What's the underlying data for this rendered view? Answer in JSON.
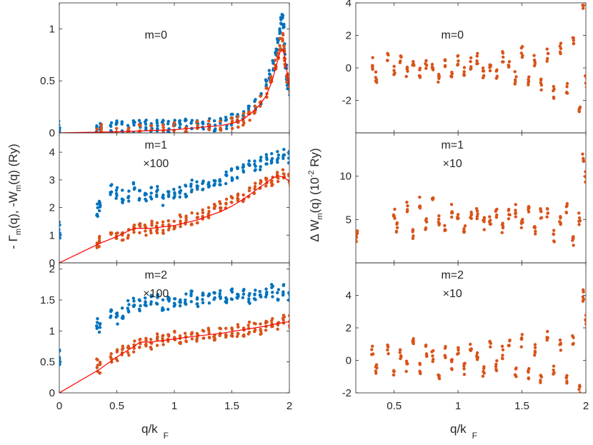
{
  "colors": {
    "blue": "#0072bd",
    "orange": "#d95319",
    "red": "#ff0000",
    "axis": "#262626"
  },
  "left_ylabel": {
    "parts": [
      "- Γ",
      "m",
      "(q), -W",
      "m",
      "(q) (Ry)"
    ]
  },
  "right_ylabel": {
    "parts": [
      "Δ W",
      "m",
      "(q) (10",
      "-2",
      " Ry)"
    ]
  },
  "xlabel": {
    "main": "q/k",
    "sub": "F"
  },
  "chart_data": [
    {
      "id": "left-m0",
      "type": "scatter",
      "annotation": [
        "m=0"
      ],
      "xlim": [
        0,
        2
      ],
      "ylim": [
        0,
        1.25
      ],
      "yticks": [
        0,
        0.5,
        1
      ],
      "ytick_labels": [
        "0",
        "0.5",
        "1"
      ],
      "xticks": [
        0,
        0.5,
        1,
        1.5,
        2
      ],
      "xtick_labels": [],
      "series": [
        {
          "color": "blue",
          "x": [
            0,
            0,
            0.33,
            0.36,
            0.45,
            0.5,
            0.55,
            0.6,
            0.65,
            0.7,
            0.75,
            0.8,
            0.85,
            0.9,
            0.95,
            1.0,
            1.05,
            1.1,
            1.15,
            1.2,
            1.25,
            1.3,
            1.35,
            1.4,
            1.45,
            1.5,
            1.55,
            1.6,
            1.65,
            1.7,
            1.75,
            1.8,
            1.83,
            1.86,
            1.88,
            1.9,
            1.92,
            1.93,
            1.94,
            1.95,
            1.96,
            1.97,
            1.98,
            1.99,
            2.0
          ],
          "y": [
            0.07,
            0.04,
            0.06,
            0.05,
            0.05,
            0.06,
            0.05,
            0.05,
            0.06,
            0.06,
            0.06,
            0.06,
            0.07,
            0.06,
            0.06,
            0.06,
            0.06,
            0.07,
            0.07,
            0.07,
            0.07,
            0.08,
            0.08,
            0.09,
            0.1,
            0.12,
            0.14,
            0.17,
            0.2,
            0.26,
            0.34,
            0.45,
            0.55,
            0.65,
            0.75,
            0.85,
            0.95,
            1.05,
            1.08,
            1.0,
            0.8,
            0.6,
            0.5,
            0.45,
            0.42
          ]
        },
        {
          "color": "orange",
          "x": [
            0.33,
            0.36,
            0.5,
            0.6,
            0.7,
            0.8,
            0.9,
            1.0,
            1.1,
            1.2,
            1.3,
            1.4,
            1.5,
            1.55,
            1.6,
            1.65,
            1.7,
            1.75,
            1.8,
            1.84,
            1.88,
            1.9,
            1.92,
            1.94,
            1.95,
            1.96,
            1.98,
            2.0
          ],
          "y": [
            0.01,
            0.02,
            0.02,
            0.02,
            0.03,
            0.03,
            0.03,
            0.04,
            0.04,
            0.05,
            0.06,
            0.07,
            0.09,
            0.1,
            0.13,
            0.17,
            0.23,
            0.3,
            0.4,
            0.52,
            0.65,
            0.75,
            0.85,
            0.9,
            0.8,
            0.7,
            0.55,
            0.45
          ]
        }
      ],
      "line": {
        "color": "red",
        "x": [
          0,
          0.5,
          1.0,
          1.2,
          1.4,
          1.5,
          1.6,
          1.7,
          1.75,
          1.8,
          1.85,
          1.9,
          1.92,
          1.95,
          1.97,
          2.0
        ],
        "y": [
          0,
          0.01,
          0.03,
          0.05,
          0.07,
          0.09,
          0.13,
          0.22,
          0.28,
          0.36,
          0.5,
          0.7,
          0.78,
          0.8,
          0.65,
          0.45
        ]
      }
    },
    {
      "id": "left-m1",
      "type": "scatter",
      "annotation": [
        "m=1",
        "×100"
      ],
      "xlim": [
        0,
        2
      ],
      "ylim": [
        0,
        4.7
      ],
      "yticks": [
        0,
        1,
        2,
        3,
        4
      ],
      "ytick_labels": [
        "0",
        "1",
        "2",
        "3",
        "4"
      ],
      "xticks": [
        0,
        0.5,
        1,
        1.5,
        2
      ],
      "xtick_labels": [],
      "series": [
        {
          "color": "blue",
          "x": [
            0,
            0,
            0.33,
            0.35,
            0.45,
            0.5,
            0.55,
            0.6,
            0.65,
            0.7,
            0.75,
            0.8,
            0.85,
            0.9,
            0.95,
            1.0,
            1.05,
            1.1,
            1.15,
            1.2,
            1.25,
            1.3,
            1.35,
            1.4,
            1.45,
            1.5,
            1.55,
            1.6,
            1.65,
            1.7,
            1.75,
            1.8,
            1.85,
            1.9,
            1.95,
            2.0
          ],
          "y": [
            1.0,
            1.3,
            1.9,
            2.0,
            2.6,
            2.5,
            2.4,
            2.4,
            2.7,
            2.5,
            2.4,
            2.5,
            2.6,
            2.3,
            2.4,
            2.5,
            2.5,
            2.6,
            2.8,
            2.7,
            2.8,
            2.8,
            2.9,
            3.0,
            3.1,
            3.2,
            3.3,
            3.4,
            3.5,
            3.5,
            3.6,
            3.7,
            3.8,
            3.8,
            3.9,
            3.8
          ]
        },
        {
          "color": "orange",
          "x": [
            0.33,
            0.35,
            0.45,
            0.5,
            0.55,
            0.6,
            0.65,
            0.7,
            0.75,
            0.8,
            0.85,
            0.9,
            0.95,
            1.0,
            1.05,
            1.1,
            1.15,
            1.2,
            1.25,
            1.3,
            1.35,
            1.4,
            1.45,
            1.5,
            1.55,
            1.6,
            1.65,
            1.7,
            1.75,
            1.8,
            1.85,
            1.9,
            1.95,
            2.0
          ],
          "y": [
            0.7,
            0.8,
            0.9,
            1.0,
            1.0,
            1.1,
            1.3,
            1.2,
            1.2,
            1.3,
            1.3,
            1.3,
            1.4,
            1.4,
            1.5,
            1.5,
            1.6,
            1.6,
            1.7,
            1.8,
            1.9,
            2.0,
            2.1,
            2.2,
            2.3,
            2.4,
            2.6,
            2.7,
            2.8,
            2.9,
            3.0,
            3.1,
            3.2,
            3.0
          ]
        }
      ],
      "line": {
        "color": "red",
        "x": [
          0,
          0.35,
          0.5,
          0.65,
          0.8,
          1.0,
          1.2,
          1.4,
          1.5,
          1.6,
          1.7,
          1.8,
          1.85,
          1.9,
          1.95,
          2.0
        ],
        "y": [
          0,
          0.7,
          0.95,
          1.25,
          1.25,
          1.35,
          1.55,
          1.85,
          2.05,
          2.3,
          2.6,
          2.9,
          3.05,
          3.15,
          3.1,
          2.95
        ]
      }
    },
    {
      "id": "left-m2",
      "type": "scatter",
      "annotation": [
        "m=2",
        "×100"
      ],
      "xlim": [
        0,
        2
      ],
      "ylim": [
        0,
        2.1
      ],
      "yticks": [
        0,
        0.5,
        1,
        1.5,
        2
      ],
      "ytick_labels": [
        "0",
        "0.5",
        "1",
        "1.5",
        "2"
      ],
      "xticks": [
        0,
        0.5,
        1,
        1.5,
        2
      ],
      "xtick_labels": [
        "0",
        "0.5",
        "1",
        "1.5",
        "2"
      ],
      "series": [
        {
          "color": "blue",
          "x": [
            0,
            0,
            0.33,
            0.35,
            0.45,
            0.5,
            0.55,
            0.6,
            0.65,
            0.7,
            0.75,
            0.8,
            0.85,
            0.9,
            0.95,
            1.0,
            1.05,
            1.1,
            1.15,
            1.2,
            1.25,
            1.3,
            1.35,
            1.4,
            1.45,
            1.5,
            1.55,
            1.6,
            1.65,
            1.7,
            1.75,
            1.8,
            1.85,
            1.9,
            1.95,
            2.0
          ],
          "y": [
            0.5,
            0.6,
            1.1,
            1.05,
            1.3,
            1.2,
            1.3,
            1.4,
            1.5,
            1.4,
            1.45,
            1.5,
            1.5,
            1.4,
            1.45,
            1.5,
            1.5,
            1.5,
            1.55,
            1.5,
            1.55,
            1.5,
            1.55,
            1.6,
            1.55,
            1.6,
            1.6,
            1.6,
            1.55,
            1.6,
            1.6,
            1.6,
            1.65,
            1.6,
            1.65,
            1.6
          ]
        },
        {
          "color": "orange",
          "x": [
            0.33,
            0.35,
            0.45,
            0.5,
            0.55,
            0.6,
            0.65,
            0.7,
            0.75,
            0.8,
            0.85,
            0.9,
            0.95,
            1.0,
            1.05,
            1.1,
            1.15,
            1.2,
            1.25,
            1.3,
            1.35,
            1.4,
            1.45,
            1.5,
            1.55,
            1.6,
            1.65,
            1.7,
            1.75,
            1.8,
            1.85,
            1.9,
            1.95,
            2.0
          ],
          "y": [
            0.45,
            0.4,
            0.55,
            0.6,
            0.65,
            0.7,
            0.75,
            0.8,
            0.8,
            0.8,
            0.85,
            0.85,
            0.85,
            0.9,
            0.85,
            0.9,
            0.9,
            0.9,
            0.95,
            0.95,
            0.95,
            1.0,
            0.95,
            1.0,
            1.0,
            1.0,
            1.05,
            1.05,
            1.05,
            1.1,
            1.1,
            1.1,
            1.15,
            1.15
          ]
        }
      ],
      "line": {
        "color": "red",
        "x": [
          0,
          0.35,
          0.5,
          0.65,
          0.7,
          0.8,
          1.0,
          1.2,
          1.4,
          1.5,
          1.6,
          1.7,
          1.8,
          1.9,
          2.0
        ],
        "y": [
          0,
          0.38,
          0.58,
          0.75,
          0.82,
          0.82,
          0.87,
          0.92,
          0.96,
          0.99,
          1.02,
          1.05,
          1.08,
          1.12,
          1.15
        ]
      }
    },
    {
      "id": "right-m0",
      "type": "scatter",
      "annotation": [
        "m=0"
      ],
      "xlim": [
        0.2,
        2
      ],
      "ylim": [
        -4,
        4
      ],
      "yticks": [
        -2,
        0,
        2,
        4
      ],
      "ytick_labels": [
        "-2",
        "0",
        "2",
        "4"
      ],
      "xticks": [
        0.5,
        1,
        1.5,
        2
      ],
      "xtick_labels": [],
      "series": [
        {
          "color": "orange",
          "x": [
            0.33,
            0.36,
            0.45,
            0.5,
            0.55,
            0.6,
            0.65,
            0.7,
            0.75,
            0.8,
            0.85,
            0.9,
            0.95,
            1.0,
            1.05,
            1.1,
            1.15,
            1.2,
            1.25,
            1.3,
            1.35,
            1.4,
            1.45,
            1.5,
            1.55,
            1.6,
            1.65,
            1.7,
            1.75,
            1.8,
            1.85,
            1.9,
            1.95,
            1.98,
            2.0
          ],
          "y": [
            0.3,
            -0.5,
            0.6,
            -0.3,
            0.4,
            -0.2,
            0.5,
            -0.4,
            0.3,
            0.2,
            -0.5,
            0.4,
            -0.3,
            0.5,
            -0.2,
            0.3,
            0.6,
            -0.4,
            0.2,
            -0.5,
            0.7,
            0.4,
            -0.6,
            1.0,
            -0.8,
            0.5,
            -1.0,
            0.8,
            -1.5,
            1.2,
            -1.2,
            1.5,
            -2.5,
            3.7,
            -0.8
          ]
        }
      ]
    },
    {
      "id": "right-m1",
      "type": "scatter",
      "annotation": [
        "m=1",
        "×10"
      ],
      "xlim": [
        0.2,
        2
      ],
      "ylim": [
        0,
        15
      ],
      "yticks": [
        5,
        10
      ],
      "ytick_labels": [
        "5",
        "10"
      ],
      "xticks": [
        0.5,
        1,
        1.5,
        2
      ],
      "xtick_labels": [],
      "series": [
        {
          "color": "orange",
          "x": [
            0.2,
            0.21,
            0.5,
            0.52,
            0.6,
            0.65,
            0.7,
            0.75,
            0.8,
            0.85,
            0.9,
            0.95,
            1.0,
            1.05,
            1.1,
            1.15,
            1.2,
            1.25,
            1.3,
            1.35,
            1.4,
            1.45,
            1.5,
            1.55,
            1.6,
            1.65,
            1.7,
            1.75,
            1.8,
            1.85,
            1.9,
            1.95,
            2.0,
            1.98
          ],
          "y": [
            3.0,
            3.6,
            5.5,
            4.0,
            6.5,
            3.5,
            7.0,
            4.5,
            7.8,
            5.0,
            4.0,
            6.0,
            5.0,
            3.8,
            5.5,
            5.8,
            4.5,
            5.2,
            6.0,
            4.2,
            5.5,
            6.0,
            4.5,
            6.5,
            3.5,
            5.5,
            6.0,
            3.0,
            5.0,
            6.5,
            2.5,
            5.0,
            10.0,
            12.0
          ]
        }
      ]
    },
    {
      "id": "right-m2",
      "type": "scatter",
      "annotation": [
        "m=2",
        "×10"
      ],
      "xlim": [
        0.2,
        2
      ],
      "ylim": [
        -2,
        6
      ],
      "yticks": [
        -2,
        0,
        2,
        4
      ],
      "ytick_labels": [
        "-2",
        "0",
        "2",
        "4"
      ],
      "xticks": [
        0.5,
        1,
        1.5,
        2
      ],
      "xtick_labels": [
        "0.5",
        "1",
        "1.5",
        "2"
      ],
      "series": [
        {
          "color": "orange",
          "x": [
            0.33,
            0.36,
            0.45,
            0.5,
            0.55,
            0.6,
            0.65,
            0.7,
            0.75,
            0.8,
            0.85,
            0.9,
            0.95,
            1.0,
            1.05,
            1.1,
            1.15,
            1.2,
            1.25,
            1.3,
            1.35,
            1.4,
            1.45,
            1.5,
            1.55,
            1.6,
            1.65,
            1.7,
            1.75,
            1.8,
            1.85,
            1.9,
            1.95,
            1.98,
            2.0
          ],
          "y": [
            0.5,
            -0.5,
            0.8,
            -0.6,
            0.4,
            -0.3,
            1.4,
            -0.5,
            0.6,
            0.3,
            -0.8,
            0.5,
            -0.3,
            0.4,
            -0.5,
            0.6,
            0.2,
            -0.6,
            0.8,
            -0.4,
            0.5,
            0.9,
            -0.8,
            1.2,
            -0.9,
            0.6,
            -1.2,
            1.5,
            -0.7,
            1.0,
            -1.0,
            1.2,
            -1.7,
            4.0,
            2.5
          ]
        }
      ]
    }
  ]
}
